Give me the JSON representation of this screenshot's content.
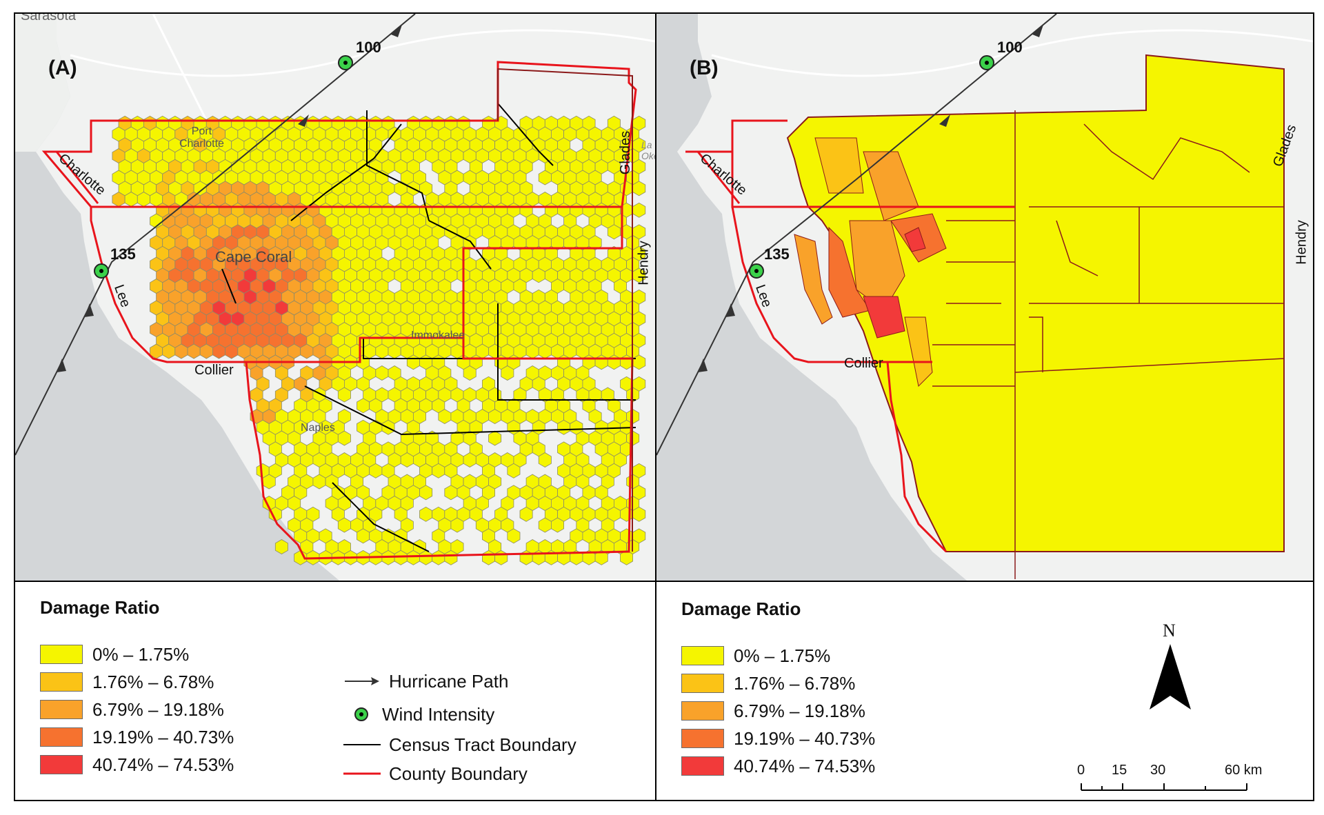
{
  "panels": [
    {
      "label": "(A)",
      "place_labels": {
        "top_city": "Sarasota",
        "port_charlotte": "Port\nCharlotte",
        "cape_coral": "Cape Coral",
        "immokalee": "Immokalee",
        "naples": "Naples",
        "lake": "La\nOkeec"
      },
      "county_labels": [
        "Charlotte",
        "Lee",
        "Collier",
        "Glades",
        "Hendry"
      ],
      "wind_labels": [
        "100",
        "135"
      ]
    },
    {
      "label": "(B)",
      "county_labels": [
        "Charlotte",
        "Lee",
        "Collier",
        "Glades",
        "Hendry"
      ],
      "wind_labels": [
        "100",
        "135"
      ]
    }
  ],
  "legend": {
    "title": "Damage Ratio",
    "classes": [
      {
        "label": "0% – 1.75%",
        "color": "#f5f500"
      },
      {
        "label": "1.76% – 6.78%",
        "color": "#fbc316"
      },
      {
        "label": "6.79% – 19.18%",
        "color": "#f9a22a"
      },
      {
        "label": "19.19% – 40.73%",
        "color": "#f6722f"
      },
      {
        "label": "40.74% – 74.53%",
        "color": "#f23a3a"
      }
    ],
    "symbols": [
      {
        "name": "hurricane-path",
        "label": "Hurricane Path"
      },
      {
        "name": "wind-intensity",
        "label": "Wind Intensity"
      },
      {
        "name": "census-tract",
        "label": "Census Tract Boundary",
        "color": "#000000"
      },
      {
        "name": "county-boundary",
        "label": "County Boundary",
        "color": "#e8141c"
      }
    ]
  },
  "north_arrow": {
    "label": "N"
  },
  "scale_bar": {
    "ticks": [
      "0",
      "15",
      "30",
      "60 km"
    ]
  },
  "colors": {
    "water": "#d3d6d8",
    "land": "#f1f2f1",
    "county": "#e8141c",
    "tract": "#000000"
  }
}
